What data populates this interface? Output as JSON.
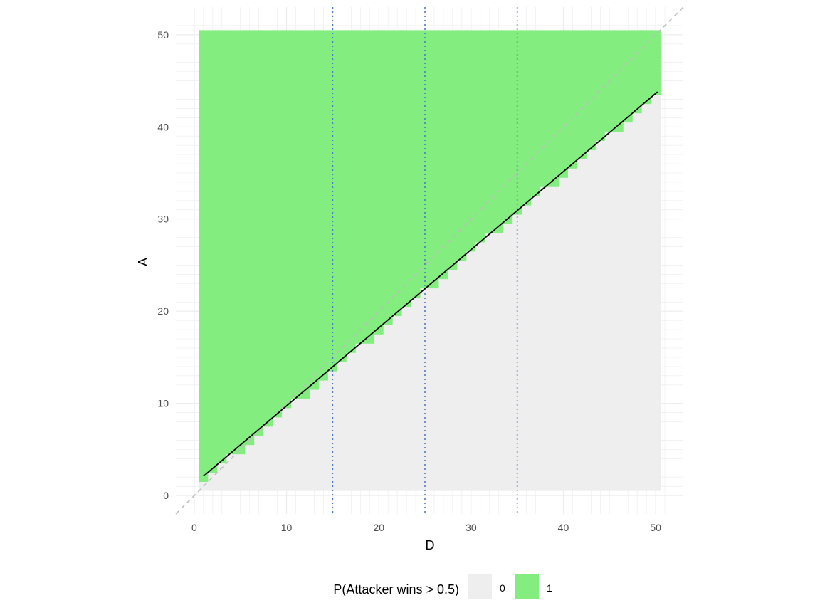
{
  "chart_data": {
    "type": "heatmap",
    "title": "",
    "xlabel": "D",
    "ylabel": "A",
    "xlim": [
      -2,
      53
    ],
    "ylim": [
      -2,
      53
    ],
    "x_ticks": [
      0,
      10,
      20,
      30,
      40,
      50
    ],
    "y_ticks": [
      0,
      10,
      20,
      30,
      40,
      50
    ],
    "x_tick_labels": [
      "0",
      "10",
      "20",
      "30",
      "40",
      "50"
    ],
    "y_tick_labels": [
      "0",
      "10",
      "20",
      "30",
      "40",
      "50"
    ],
    "grid": true,
    "tiles": {
      "d_range": [
        1,
        50
      ],
      "a_range": [
        1,
        50
      ],
      "min_winning_attacker": [
        2,
        3,
        4,
        5,
        5,
        6,
        7,
        8,
        9,
        10,
        11,
        11,
        12,
        13,
        14,
        15,
        16,
        17,
        17,
        18,
        19,
        20,
        21,
        22,
        23,
        23,
        24,
        25,
        26,
        27,
        28,
        29,
        29,
        30,
        31,
        32,
        33,
        34,
        34,
        35,
        36,
        37,
        38,
        39,
        40,
        40,
        41,
        42,
        43,
        44
      ]
    },
    "legend": {
      "title": "P(Attacker wins > 0.5)",
      "position": "bottom",
      "entries": [
        {
          "label": "0",
          "color": "#eeeeee"
        },
        {
          "label": "1",
          "color": "#83ee7f"
        }
      ]
    },
    "reference_lines": {
      "diagonal": {
        "slope": 1,
        "intercept": 0,
        "style": "dashed",
        "color": "#bdbdbd"
      },
      "vertical": {
        "x": [
          15,
          25,
          35
        ],
        "style": "dotted",
        "color": "#4f78c5"
      },
      "fit_line": {
        "x": [
          1,
          50.2
        ],
        "y": [
          2.1,
          43.8
        ],
        "color": "#000000"
      }
    }
  }
}
